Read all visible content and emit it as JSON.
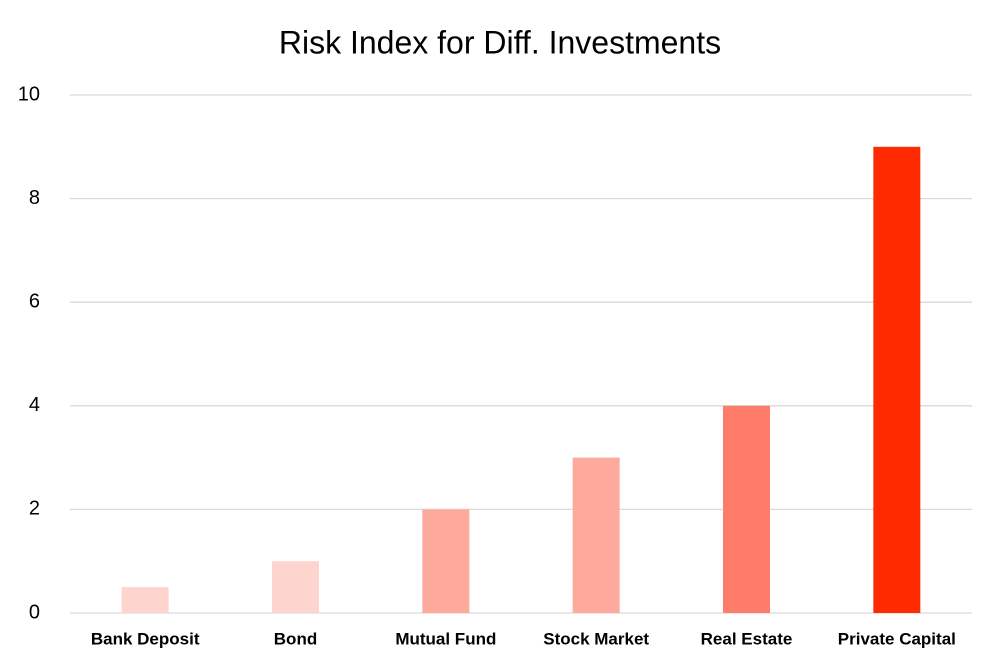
{
  "chart_data": {
    "type": "bar",
    "title": "Risk Index for Diff. Investments",
    "categories": [
      "Bank Deposit",
      "Bond",
      "Mutual Fund",
      "Stock Market",
      "Real Estate",
      "Private Capital"
    ],
    "values": [
      0.5,
      1,
      2,
      3,
      4,
      9
    ],
    "colors": [
      "#fdd5ce",
      "#fdd5ce",
      "#fdaa9c",
      "#fdaa9c",
      "#ff7c6a",
      "#ff2a00"
    ],
    "ylim": [
      0,
      10
    ],
    "yticks": [
      0,
      2,
      4,
      6,
      8,
      10
    ],
    "grid": true
  }
}
